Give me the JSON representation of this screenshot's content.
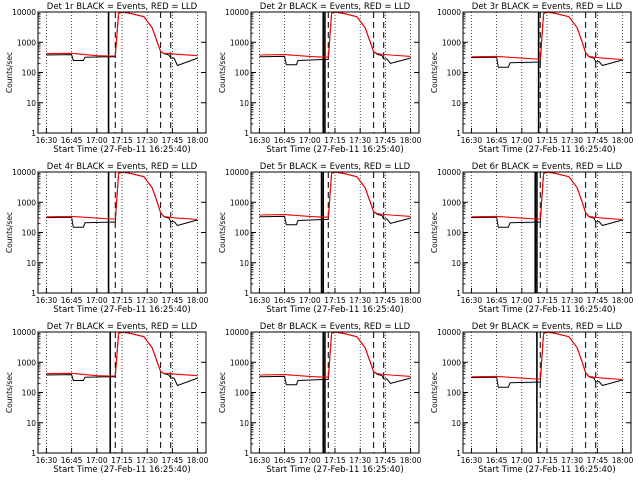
{
  "x_ticks": [
    "16:30",
    "16:45",
    "17:00",
    "17:15",
    "17:30",
    "17:45",
    "18:00"
  ],
  "y_ticks": [
    "1",
    "10",
    "100",
    "1000",
    "10000"
  ],
  "colors": {
    "events": "#000000",
    "lld": "#ff0000",
    "axes": "#000000"
  },
  "chart_data": [
    {
      "type": "line",
      "title": "Det 1r BLACK = Events, RED = LLD",
      "xlabel": "Start Time (27-Feb-11 16:25:40)",
      "ylabel": "Counts/sec",
      "xlim": [
        "16:25",
        "18:05"
      ],
      "ylim": [
        1,
        10000
      ],
      "y_scale": "log",
      "series": [
        {
          "name": "Events",
          "x": [
            "16:30",
            "16:45",
            "16:46",
            "16:52",
            "16:53",
            "17:08",
            "17:11",
            "17:13",
            "17:14",
            "17:16",
            "17:20",
            "17:28",
            "17:33",
            "17:36",
            "17:38",
            "17:40",
            "17:43",
            "17:44",
            "17:46",
            "17:48",
            "18:00"
          ],
          "y": [
            380,
            390,
            250,
            250,
            320,
            330,
            330,
            9000,
            9500,
            9800,
            9000,
            7000,
            3000,
            1000,
            500,
            420,
            380,
            300,
            300,
            170,
            300
          ]
        },
        {
          "name": "LLD",
          "x": [
            "16:30",
            "16:45",
            "17:00",
            "17:08",
            "17:11",
            "17:13",
            "17:14",
            "17:16",
            "17:20",
            "17:28",
            "17:33",
            "17:36",
            "17:38",
            "17:40",
            "17:43",
            "17:48",
            "18:00"
          ],
          "y": [
            420,
            430,
            360,
            350,
            350,
            9000,
            9500,
            9800,
            9000,
            7000,
            3000,
            1000,
            500,
            430,
            420,
            400,
            360
          ]
        }
      ]
    },
    {
      "type": "line",
      "title": "Det 2r BLACK = Events, RED = LLD",
      "xlabel": "Start Time (27-Feb-11 16:25:40)",
      "ylabel": "Counts/sec",
      "xlim": [
        "16:25",
        "18:05"
      ],
      "ylim": [
        1,
        10000
      ],
      "y_scale": "log",
      "series": [
        {
          "name": "Events",
          "x": [
            "16:30",
            "16:45",
            "16:46",
            "16:52",
            "16:53",
            "17:08",
            "17:11",
            "17:13",
            "17:14",
            "17:16",
            "17:20",
            "17:28",
            "17:33",
            "17:36",
            "17:38",
            "17:40",
            "17:43",
            "17:44",
            "17:46",
            "17:48",
            "18:00"
          ],
          "y": [
            330,
            340,
            180,
            180,
            250,
            270,
            270,
            9000,
            9500,
            9800,
            9000,
            7000,
            3000,
            1000,
            500,
            400,
            360,
            280,
            280,
            200,
            300
          ]
        },
        {
          "name": "LLD",
          "x": [
            "16:30",
            "16:45",
            "17:00",
            "17:08",
            "17:11",
            "17:13",
            "17:14",
            "17:16",
            "17:20",
            "17:28",
            "17:33",
            "17:36",
            "17:38",
            "17:40",
            "17:43",
            "17:48",
            "18:00"
          ],
          "y": [
            380,
            390,
            340,
            320,
            320,
            9000,
            9500,
            9800,
            9000,
            7000,
            3000,
            1000,
            500,
            420,
            400,
            380,
            340
          ]
        }
      ]
    },
    {
      "type": "line",
      "title": "Det 3r BLACK = Events, RED = LLD",
      "xlabel": "Start Time (27-Feb-11 16:25:40)",
      "ylabel": "Counts/sec",
      "xlim": [
        "16:25",
        "18:05"
      ],
      "ylim": [
        1,
        10000
      ],
      "y_scale": "log",
      "series": [
        {
          "name": "Events",
          "x": [
            "16:30",
            "16:45",
            "16:46",
            "16:52",
            "16:53",
            "17:08",
            "17:11",
            "17:13",
            "17:14",
            "17:16",
            "17:20",
            "17:28",
            "17:33",
            "17:36",
            "17:38",
            "17:40",
            "17:43",
            "17:44",
            "17:46",
            "17:48",
            "18:00"
          ],
          "y": [
            310,
            320,
            150,
            150,
            210,
            220,
            220,
            9000,
            9500,
            9800,
            9000,
            7000,
            3000,
            1000,
            450,
            330,
            300,
            230,
            230,
            170,
            260
          ]
        },
        {
          "name": "LLD",
          "x": [
            "16:30",
            "16:45",
            "17:00",
            "17:08",
            "17:11",
            "17:13",
            "17:14",
            "17:16",
            "17:20",
            "17:28",
            "17:33",
            "17:36",
            "17:38",
            "17:40",
            "17:43",
            "17:48",
            "18:00"
          ],
          "y": [
            330,
            340,
            300,
            280,
            280,
            9000,
            9500,
            9800,
            9000,
            7000,
            3000,
            1000,
            450,
            340,
            320,
            300,
            270
          ]
        }
      ]
    },
    {
      "type": "line",
      "title": "Det 4r BLACK = Events, RED = LLD",
      "xlabel": "Start Time (27-Feb-11 16:25:40)",
      "ylabel": "Counts/sec",
      "xlim": [
        "16:25",
        "18:05"
      ],
      "ylim": [
        1,
        10000
      ],
      "y_scale": "log",
      "series": [
        {
          "name": "Events",
          "x": [
            "16:30",
            "16:45",
            "16:46",
            "16:52",
            "16:53",
            "17:08",
            "17:11",
            "17:13",
            "17:14",
            "17:16",
            "17:20",
            "17:28",
            "17:33",
            "17:36",
            "17:38",
            "17:40",
            "17:43",
            "17:44",
            "17:46",
            "17:48",
            "18:00"
          ],
          "y": [
            310,
            320,
            150,
            150,
            210,
            220,
            220,
            9000,
            9500,
            9800,
            9000,
            7000,
            3000,
            1000,
            450,
            330,
            300,
            230,
            230,
            170,
            260
          ]
        },
        {
          "name": "LLD",
          "x": [
            "16:30",
            "16:45",
            "17:00",
            "17:08",
            "17:11",
            "17:13",
            "17:14",
            "17:16",
            "17:20",
            "17:28",
            "17:33",
            "17:36",
            "17:38",
            "17:40",
            "17:43",
            "17:48",
            "18:00"
          ],
          "y": [
            330,
            340,
            300,
            280,
            280,
            9000,
            9500,
            9800,
            9000,
            7000,
            3000,
            1000,
            450,
            340,
            320,
            300,
            270
          ]
        }
      ]
    },
    {
      "type": "line",
      "title": "Det 5r BLACK = Events, RED = LLD",
      "xlabel": "Start Time (27-Feb-11 16:25:40)",
      "ylabel": "Counts/sec",
      "xlim": [
        "16:25",
        "18:05"
      ],
      "ylim": [
        1,
        10000
      ],
      "y_scale": "log",
      "series": [
        {
          "name": "Events",
          "x": [
            "16:30",
            "16:45",
            "16:46",
            "16:52",
            "16:53",
            "17:08",
            "17:11",
            "17:13",
            "17:14",
            "17:16",
            "17:20",
            "17:28",
            "17:33",
            "17:36",
            "17:38",
            "17:40",
            "17:43",
            "17:44",
            "17:46",
            "17:48",
            "18:00"
          ],
          "y": [
            330,
            340,
            180,
            180,
            250,
            270,
            270,
            9000,
            9500,
            9800,
            9000,
            7000,
            3000,
            1000,
            500,
            400,
            360,
            280,
            280,
            200,
            300
          ]
        },
        {
          "name": "LLD",
          "x": [
            "16:30",
            "16:45",
            "17:00",
            "17:08",
            "17:11",
            "17:13",
            "17:14",
            "17:16",
            "17:20",
            "17:28",
            "17:33",
            "17:36",
            "17:38",
            "17:40",
            "17:43",
            "17:48",
            "18:00"
          ],
          "y": [
            380,
            390,
            340,
            320,
            320,
            9000,
            9500,
            9800,
            9000,
            7000,
            3000,
            1000,
            500,
            420,
            400,
            380,
            340
          ]
        }
      ]
    },
    {
      "type": "line",
      "title": "Det 6r BLACK = Events, RED = LLD",
      "xlabel": "Start Time (27-Feb-11 16:25:40)",
      "ylabel": "Counts/sec",
      "xlim": [
        "16:25",
        "18:05"
      ],
      "ylim": [
        1,
        10000
      ],
      "y_scale": "log",
      "series": [
        {
          "name": "Events",
          "x": [
            "16:30",
            "16:45",
            "16:46",
            "16:52",
            "16:53",
            "17:08",
            "17:11",
            "17:13",
            "17:14",
            "17:16",
            "17:20",
            "17:28",
            "17:33",
            "17:36",
            "17:38",
            "17:40",
            "17:43",
            "17:44",
            "17:46",
            "17:48",
            "18:00"
          ],
          "y": [
            310,
            320,
            150,
            150,
            210,
            220,
            220,
            9000,
            9500,
            9800,
            9000,
            7000,
            3000,
            1000,
            450,
            330,
            300,
            230,
            230,
            170,
            260
          ]
        },
        {
          "name": "LLD",
          "x": [
            "16:30",
            "16:45",
            "17:00",
            "17:08",
            "17:11",
            "17:13",
            "17:14",
            "17:16",
            "17:20",
            "17:28",
            "17:33",
            "17:36",
            "17:38",
            "17:40",
            "17:43",
            "17:48",
            "18:00"
          ],
          "y": [
            330,
            340,
            300,
            280,
            280,
            9000,
            9500,
            9800,
            9000,
            7000,
            3000,
            1000,
            450,
            340,
            320,
            300,
            270
          ]
        }
      ]
    },
    {
      "type": "line",
      "title": "Det 7r BLACK = Events, RED = LLD",
      "xlabel": "Start Time (27-Feb-11 16:25:40)",
      "ylabel": "Counts/sec",
      "xlim": [
        "16:25",
        "18:05"
      ],
      "ylim": [
        1,
        10000
      ],
      "y_scale": "log",
      "series": [
        {
          "name": "Events",
          "x": [
            "16:30",
            "16:45",
            "16:46",
            "16:52",
            "16:53",
            "17:08",
            "17:11",
            "17:13",
            "17:14",
            "17:16",
            "17:20",
            "17:28",
            "17:33",
            "17:36",
            "17:38",
            "17:40",
            "17:43",
            "17:44",
            "17:46",
            "17:48",
            "18:00"
          ],
          "y": [
            380,
            390,
            250,
            250,
            320,
            330,
            330,
            9000,
            9500,
            9800,
            9000,
            7000,
            3000,
            1000,
            500,
            420,
            380,
            300,
            300,
            170,
            300
          ]
        },
        {
          "name": "LLD",
          "x": [
            "16:30",
            "16:45",
            "17:00",
            "17:08",
            "17:11",
            "17:13",
            "17:14",
            "17:16",
            "17:20",
            "17:28",
            "17:33",
            "17:36",
            "17:38",
            "17:40",
            "17:43",
            "17:48",
            "18:00"
          ],
          "y": [
            420,
            430,
            360,
            350,
            350,
            9000,
            9500,
            9800,
            9000,
            7000,
            3000,
            1000,
            500,
            430,
            420,
            400,
            360
          ]
        }
      ]
    },
    {
      "type": "line",
      "title": "Det 8r BLACK = Events, RED = LLD",
      "xlabel": "Start Time (27-Feb-11 16:25:40)",
      "ylabel": "Counts/sec",
      "xlim": [
        "16:25",
        "18:05"
      ],
      "ylim": [
        1,
        10000
      ],
      "y_scale": "log",
      "series": [
        {
          "name": "Events",
          "x": [
            "16:30",
            "16:45",
            "16:46",
            "16:52",
            "16:53",
            "17:08",
            "17:11",
            "17:13",
            "17:14",
            "17:16",
            "17:20",
            "17:28",
            "17:33",
            "17:36",
            "17:38",
            "17:40",
            "17:43",
            "17:44",
            "17:46",
            "17:48",
            "18:00"
          ],
          "y": [
            330,
            340,
            180,
            180,
            250,
            270,
            270,
            9000,
            9500,
            9800,
            9000,
            7000,
            3000,
            1000,
            500,
            400,
            360,
            280,
            280,
            200,
            300
          ]
        },
        {
          "name": "LLD",
          "x": [
            "16:30",
            "16:45",
            "17:00",
            "17:08",
            "17:11",
            "17:13",
            "17:14",
            "17:16",
            "17:20",
            "17:28",
            "17:33",
            "17:36",
            "17:38",
            "17:40",
            "17:43",
            "17:48",
            "18:00"
          ],
          "y": [
            380,
            390,
            340,
            320,
            320,
            9000,
            9500,
            9800,
            9000,
            7000,
            3000,
            1000,
            500,
            420,
            400,
            380,
            340
          ]
        }
      ]
    },
    {
      "type": "line",
      "title": "Det 9r BLACK = Events, RED = LLD",
      "xlabel": "Start Time (27-Feb-11 16:25:40)",
      "ylabel": "Counts/sec",
      "xlim": [
        "16:25",
        "18:05"
      ],
      "ylim": [
        1,
        10000
      ],
      "y_scale": "log",
      "series": [
        {
          "name": "Events",
          "x": [
            "16:30",
            "16:45",
            "16:46",
            "16:52",
            "16:53",
            "17:08",
            "17:11",
            "17:13",
            "17:14",
            "17:16",
            "17:20",
            "17:28",
            "17:33",
            "17:36",
            "17:38",
            "17:40",
            "17:43",
            "17:44",
            "17:46",
            "17:48",
            "18:00"
          ],
          "y": [
            310,
            320,
            150,
            150,
            210,
            220,
            220,
            9000,
            9500,
            9800,
            9000,
            7000,
            3000,
            1000,
            450,
            330,
            300,
            230,
            230,
            170,
            260
          ]
        },
        {
          "name": "LLD",
          "x": [
            "16:30",
            "16:45",
            "17:00",
            "17:08",
            "17:11",
            "17:13",
            "17:14",
            "17:16",
            "17:20",
            "17:28",
            "17:33",
            "17:36",
            "17:38",
            "17:40",
            "17:43",
            "17:48",
            "18:00"
          ],
          "y": [
            330,
            340,
            300,
            280,
            280,
            9000,
            9500,
            9800,
            9000,
            7000,
            3000,
            1000,
            450,
            340,
            320,
            300,
            270
          ]
        }
      ]
    }
  ],
  "markers": {
    "solid": [
      [
        "17:07"
      ],
      [
        "17:08",
        "17:09"
      ],
      [
        "17:10"
      ],
      [
        "17:07"
      ],
      [
        "17:07",
        "17:08"
      ],
      [
        "17:08",
        "17:09"
      ],
      [
        "17:08"
      ],
      [
        "17:08",
        "17:09"
      ],
      [
        "17:09"
      ]
    ],
    "dashed": [
      "17:11",
      "17:38",
      "17:44"
    ]
  }
}
